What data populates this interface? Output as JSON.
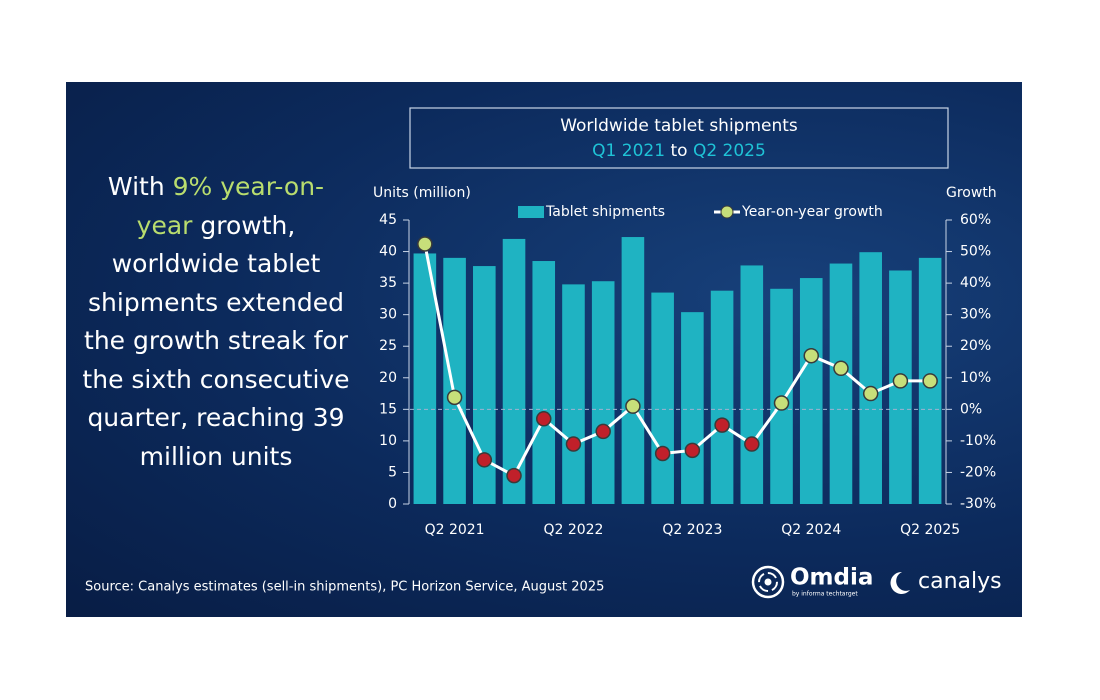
{
  "headline": [
    "With",
    "9% year-on-year",
    "growth, worldwide tablet shipments extended the growth streak for the sixth consecutive quarter, reaching 39 million units"
  ],
  "chart_data": {
    "type": "combo",
    "title": "Worldwide tablet shipments",
    "subtitle": [
      "Q1 2021",
      "to",
      "Q2 2025"
    ],
    "y_label": "Units (million)",
    "y2_label": "Growth",
    "categories": [
      null,
      "Q2 2021",
      null,
      null,
      null,
      "Q2 2022",
      null,
      null,
      null,
      "Q2 2023",
      null,
      null,
      null,
      "Q2 2024",
      null,
      null,
      null,
      "Q2 2025"
    ],
    "series": [
      {
        "name": "Tablet shipments",
        "type": "bar",
        "color": "#1fb3c2",
        "values": [
          39.7,
          39,
          37.7,
          42,
          38.5,
          34.8,
          35.3,
          42.3,
          33.5,
          30.4,
          33.8,
          37.8,
          34.1,
          35.8,
          38.1,
          39.9,
          37,
          39
        ]
      },
      {
        "name": "Year-on-year growth",
        "type": "line",
        "axis": "y2",
        "color": "#ffffff",
        "positive_color": "#c7df7a",
        "negative_color": "#c0202a",
        "values": [
          52.4,
          3.8,
          -16,
          -21,
          -3,
          -11,
          -7,
          1,
          -14,
          -13,
          -5,
          -11,
          2,
          17,
          13,
          5,
          9,
          9
        ]
      }
    ],
    "ylim": [
      0,
      45
    ],
    "yticks": [
      0,
      5,
      10,
      15,
      20,
      25,
      30,
      35,
      40,
      45
    ],
    "y2lim": [
      -30,
      60
    ],
    "y2ticks": [
      {
        "value": -30,
        "label": "-30%"
      },
      {
        "value": -20,
        "label": "-20%"
      },
      {
        "value": -10,
        "label": "-10%"
      },
      {
        "value": 0,
        "label": "0%"
      },
      {
        "value": 10,
        "label": "10%"
      },
      {
        "value": 20,
        "label": "20%"
      },
      {
        "value": 30,
        "label": "30%"
      },
      {
        "value": 40,
        "label": "40%"
      },
      {
        "value": 50,
        "label": "50%"
      },
      {
        "value": 60,
        "label": "60%"
      }
    ],
    "zero_line": true
  },
  "source": "Source: Canalys estimates (sell-in shipments), PC Horizon Service, August 2025",
  "logos": {
    "omdia": "Omdia",
    "omdia_tagline": "by informa techtarget",
    "canalys": "canalys"
  }
}
